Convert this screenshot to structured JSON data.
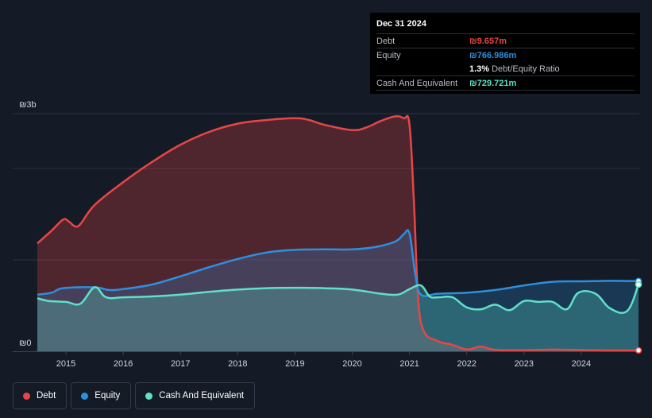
{
  "tooltip": {
    "date": "Dec 31 2024",
    "rows": [
      {
        "label": "Debt",
        "value": "₪9.657m",
        "color": "#e84646"
      },
      {
        "label": "Equity",
        "value": "₪766.986m",
        "color": "#2d8fe0"
      },
      {
        "label": "",
        "ratio_value": "1.3%",
        "ratio_label": "Debt/Equity Ratio"
      },
      {
        "label": "Cash And Equivalent",
        "value": "₪729.721m",
        "color": "#5fe0c9"
      }
    ]
  },
  "legend": [
    {
      "label": "Debt",
      "color": "#e84646"
    },
    {
      "label": "Equity",
      "color": "#2d8fe0"
    },
    {
      "label": "Cash And Equivalent",
      "color": "#5fe0c9"
    }
  ],
  "chart_data": {
    "type": "area",
    "y_top_label": "₪3b",
    "y_bottom_label": "₪0",
    "ylim": [
      0,
      2600
    ],
    "xlim": [
      2014.5,
      2025.0
    ],
    "x_ticks": [
      "2015",
      "2016",
      "2017",
      "2018",
      "2019",
      "2020",
      "2021",
      "2022",
      "2023",
      "2024"
    ],
    "series": [
      {
        "name": "Debt",
        "color": "#e84646",
        "points": [
          [
            2014.5,
            1180
          ],
          [
            2014.75,
            1320
          ],
          [
            2014.95,
            1440
          ],
          [
            2015.05,
            1420
          ],
          [
            2015.15,
            1370
          ],
          [
            2015.25,
            1390
          ],
          [
            2015.5,
            1600
          ],
          [
            2016,
            1850
          ],
          [
            2016.5,
            2070
          ],
          [
            2017,
            2260
          ],
          [
            2017.5,
            2400
          ],
          [
            2018,
            2490
          ],
          [
            2018.5,
            2530
          ],
          [
            2019,
            2550
          ],
          [
            2019.25,
            2530
          ],
          [
            2019.5,
            2480
          ],
          [
            2020,
            2420
          ],
          [
            2020.25,
            2450
          ],
          [
            2020.5,
            2520
          ],
          [
            2020.75,
            2570
          ],
          [
            2020.9,
            2550
          ],
          [
            2021.0,
            2480
          ],
          [
            2021.08,
            1600
          ],
          [
            2021.15,
            600
          ],
          [
            2021.25,
            220
          ],
          [
            2021.5,
            110
          ],
          [
            2021.75,
            70
          ],
          [
            2022,
            20
          ],
          [
            2022.25,
            50
          ],
          [
            2022.5,
            15
          ],
          [
            2023,
            12
          ],
          [
            2023.5,
            18
          ],
          [
            2024,
            14
          ],
          [
            2024.5,
            10
          ],
          [
            2025,
            10
          ]
        ]
      },
      {
        "name": "Equity",
        "color": "#2d8fe0",
        "points": [
          [
            2014.5,
            620
          ],
          [
            2014.75,
            640
          ],
          [
            2014.95,
            690
          ],
          [
            2015.5,
            700
          ],
          [
            2015.75,
            670
          ],
          [
            2016,
            680
          ],
          [
            2016.5,
            730
          ],
          [
            2017,
            820
          ],
          [
            2017.5,
            920
          ],
          [
            2018,
            1010
          ],
          [
            2018.5,
            1080
          ],
          [
            2019,
            1110
          ],
          [
            2019.5,
            1115
          ],
          [
            2020,
            1115
          ],
          [
            2020.4,
            1140
          ],
          [
            2020.75,
            1200
          ],
          [
            2020.9,
            1280
          ],
          [
            2021.0,
            1290
          ],
          [
            2021.1,
            850
          ],
          [
            2021.2,
            620
          ],
          [
            2021.5,
            630
          ],
          [
            2022,
            640
          ],
          [
            2022.5,
            670
          ],
          [
            2023,
            720
          ],
          [
            2023.5,
            760
          ],
          [
            2024,
            765
          ],
          [
            2024.5,
            770
          ],
          [
            2025,
            767
          ]
        ]
      },
      {
        "name": "Cash And Equivalent",
        "color": "#5fe0c9",
        "points": [
          [
            2014.5,
            580
          ],
          [
            2014.7,
            550
          ],
          [
            2015.0,
            540
          ],
          [
            2015.25,
            520
          ],
          [
            2015.5,
            700
          ],
          [
            2015.7,
            590
          ],
          [
            2016,
            590
          ],
          [
            2016.5,
            600
          ],
          [
            2017,
            620
          ],
          [
            2017.5,
            650
          ],
          [
            2018,
            675
          ],
          [
            2018.5,
            690
          ],
          [
            2019,
            695
          ],
          [
            2019.5,
            690
          ],
          [
            2020,
            675
          ],
          [
            2020.5,
            630
          ],
          [
            2020.8,
            620
          ],
          [
            2021.0,
            680
          ],
          [
            2021.2,
            720
          ],
          [
            2021.35,
            600
          ],
          [
            2021.5,
            590
          ],
          [
            2021.75,
            590
          ],
          [
            2022,
            480
          ],
          [
            2022.25,
            460
          ],
          [
            2022.5,
            510
          ],
          [
            2022.75,
            450
          ],
          [
            2023,
            550
          ],
          [
            2023.25,
            540
          ],
          [
            2023.5,
            540
          ],
          [
            2023.75,
            460
          ],
          [
            2023.95,
            640
          ],
          [
            2024.25,
            630
          ],
          [
            2024.5,
            470
          ],
          [
            2024.8,
            440
          ],
          [
            2025,
            730
          ]
        ]
      }
    ],
    "grid": true
  }
}
